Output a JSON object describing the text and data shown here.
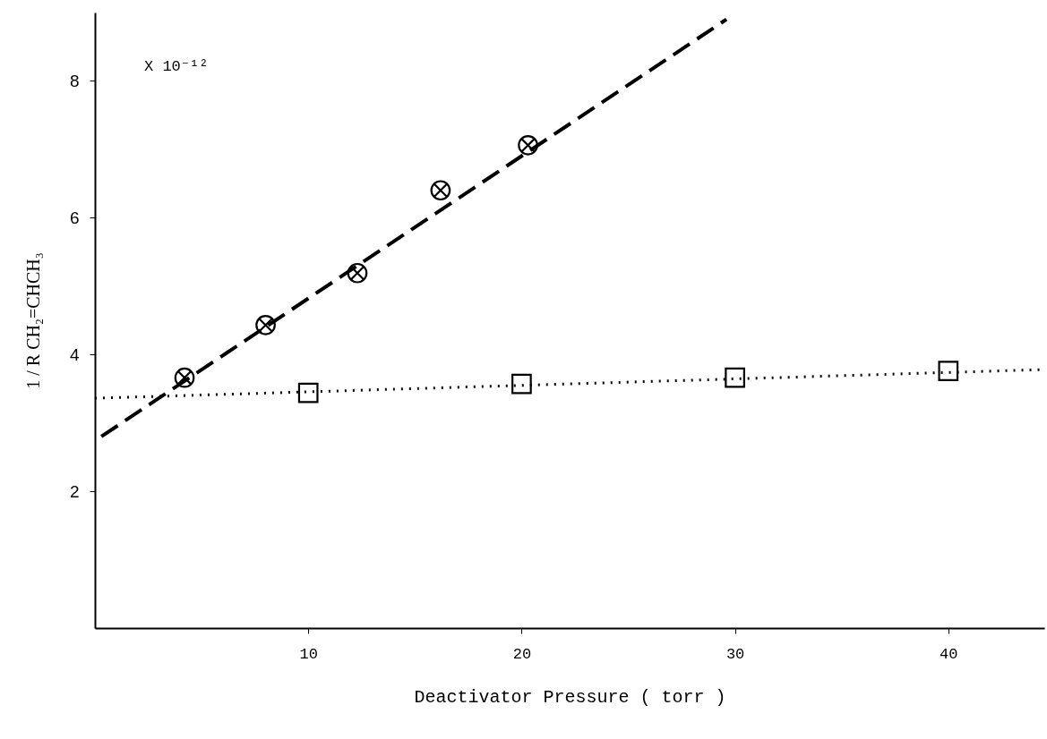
{
  "chart_data": {
    "type": "scatter",
    "xlabel": "Deactivator Pressure ( torr )",
    "ylabel": "1 / R CH₂=CHCH₃",
    "annotations": [
      "X 10⁻¹²"
    ],
    "xlim": [
      0,
      44.5
    ],
    "ylim": [
      0,
      9
    ],
    "xticks": [
      10,
      20,
      30,
      40
    ],
    "yticks": [
      2,
      4,
      6,
      8
    ],
    "series": [
      {
        "color": "#000000",
        "marker": "circle",
        "x": [
          4.2,
          8.0,
          12.3,
          16.2,
          20.3
        ],
        "values": [
          3.66,
          4.43,
          5.19,
          6.4,
          7.06
        ]
      },
      {
        "color": "#000000",
        "marker": "square",
        "x": [
          10,
          20,
          30,
          40
        ],
        "values": [
          3.44,
          3.57,
          3.66,
          3.76
        ]
      },
      {
        "type": "line",
        "color": "#000000",
        "line_style": "dashed",
        "x": [
          0.3,
          29.6
        ],
        "values": [
          2.8,
          8.9
        ]
      },
      {
        "type": "line",
        "color": "#000000",
        "line_style": "dotted",
        "x": [
          0,
          44.5
        ],
        "values": [
          3.36,
          3.78
        ]
      }
    ]
  }
}
